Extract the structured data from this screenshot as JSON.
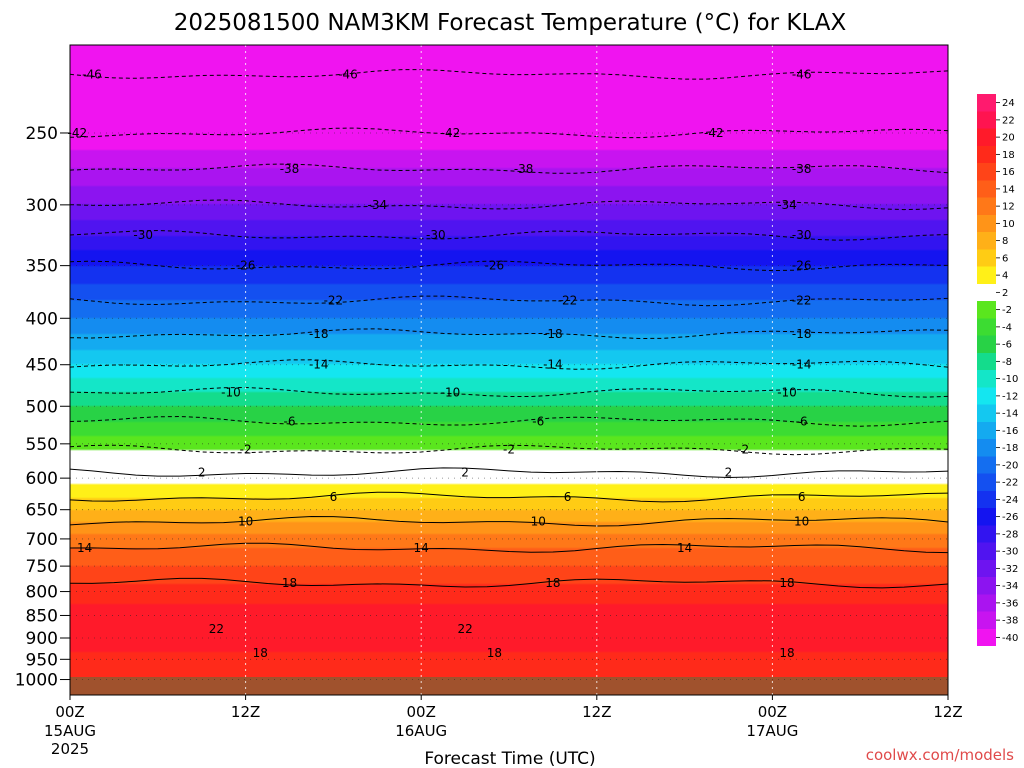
{
  "chart_data": {
    "type": "heatmap",
    "title": "2025081500 NAM3KM Forecast Temperature (°C) for KLAX",
    "xlabel": "Forecast Time (UTC)",
    "ylabel": "",
    "watermark": "coolwx.com/models",
    "x_ticks": [
      {
        "hour": 0,
        "label1": "00Z",
        "label2": "15AUG",
        "label3": "2025"
      },
      {
        "hour": 12,
        "label1": "12Z",
        "label2": "",
        "label3": ""
      },
      {
        "hour": 24,
        "label1": "00Z",
        "label2": "16AUG",
        "label3": ""
      },
      {
        "hour": 36,
        "label1": "12Z",
        "label2": "",
        "label3": ""
      },
      {
        "hour": 48,
        "label1": "00Z",
        "label2": "17AUG",
        "label3": ""
      },
      {
        "hour": 60,
        "label1": "12Z",
        "label2": "",
        "label3": ""
      }
    ],
    "xlim": [
      0,
      60
    ],
    "y_ticks": [
      "250",
      "300",
      "350",
      "400",
      "450",
      "500",
      "550",
      "600",
      "650",
      "700",
      "750",
      "800",
      "850",
      "900",
      "950",
      "1000"
    ],
    "y_tick_values": [
      250,
      300,
      350,
      400,
      450,
      500,
      550,
      600,
      650,
      700,
      750,
      800,
      850,
      900,
      950,
      1000
    ],
    "ylim": [
      200,
      1040
    ],
    "y_scale": "log",
    "y_inverted": true,
    "profile": {
      "pressure_hpa": [
        200,
        250,
        300,
        350,
        400,
        450,
        500,
        550,
        575,
        600,
        650,
        700,
        750,
        800,
        850,
        900,
        950,
        1000
      ],
      "temperature_c": [
        -48,
        -42,
        -34,
        -26,
        -20,
        -14,
        -8,
        -3,
        0,
        3,
        8,
        13,
        16,
        19,
        21,
        22,
        19,
        18
      ]
    },
    "colorbar": {
      "levels": [
        "24",
        "22",
        "20",
        "18",
        "16",
        "14",
        "12",
        "10",
        "8",
        "6",
        "4",
        "2",
        "-2",
        "-4",
        "-6",
        "-8",
        "-10",
        "-12",
        "-14",
        "-16",
        "-18",
        "-20",
        "-22",
        "-24",
        "-26",
        "-28",
        "-30",
        "-32",
        "-34",
        "-36",
        "-38",
        "-40"
      ],
      "colors": [
        "#ff1a6e",
        "#ff1450",
        "#ff1a2a",
        "#ff2a1a",
        "#ff4418",
        "#ff5e18",
        "#ff7818",
        "#ff9418",
        "#ffb018",
        "#ffcc14",
        "#fff018",
        "#ffffff",
        "#5ae61e",
        "#3cdc32",
        "#28d246",
        "#14dc8c",
        "#14e6c8",
        "#14e6f0",
        "#14c8f0",
        "#14aaf0",
        "#148cf0",
        "#146ef0",
        "#1450f0",
        "#1432f0",
        "#1414f0",
        "#3214f0",
        "#5014f0",
        "#6e14f0",
        "#8c14f0",
        "#aa14f0",
        "#c814f0",
        "#f014f0"
      ]
    },
    "contour_labels": [
      {
        "t": 1.5,
        "value": "-46"
      },
      {
        "t": 19,
        "value": "-46"
      },
      {
        "t": 50,
        "value": "-46"
      },
      {
        "t": 0.5,
        "value": "-42"
      },
      {
        "t": 26,
        "value": "-42"
      },
      {
        "t": 44,
        "value": "-42"
      },
      {
        "t": 15,
        "value": "-38"
      },
      {
        "t": 31,
        "value": "-38"
      },
      {
        "t": 50,
        "value": "-38"
      },
      {
        "t": 21,
        "value": "-34"
      },
      {
        "t": 49,
        "value": "-34"
      },
      {
        "t": 5,
        "value": "-30"
      },
      {
        "t": 25,
        "value": "-30"
      },
      {
        "t": 50,
        "value": "-30"
      },
      {
        "t": 12,
        "value": "-26"
      },
      {
        "t": 29,
        "value": "-26"
      },
      {
        "t": 50,
        "value": "-26"
      },
      {
        "t": 18,
        "value": "-22"
      },
      {
        "t": 34,
        "value": "-22"
      },
      {
        "t": 50,
        "value": "-22"
      },
      {
        "t": 17,
        "value": "-18"
      },
      {
        "t": 33,
        "value": "-18"
      },
      {
        "t": 50,
        "value": "-18"
      },
      {
        "t": 17,
        "value": "-14"
      },
      {
        "t": 33,
        "value": "-14"
      },
      {
        "t": 50,
        "value": "-14"
      },
      {
        "t": 11,
        "value": "-10"
      },
      {
        "t": 26,
        "value": "-10"
      },
      {
        "t": 49,
        "value": "-10"
      },
      {
        "t": 15,
        "value": "-6"
      },
      {
        "t": 32,
        "value": "-6"
      },
      {
        "t": 50,
        "value": "-6"
      },
      {
        "t": 12,
        "value": "-2"
      },
      {
        "t": 30,
        "value": "-2"
      },
      {
        "t": 46,
        "value": "-2"
      },
      {
        "t": 9,
        "value": "2"
      },
      {
        "t": 27,
        "value": "2"
      },
      {
        "t": 45,
        "value": "2"
      },
      {
        "t": 18,
        "value": "6"
      },
      {
        "t": 34,
        "value": "6"
      },
      {
        "t": 50,
        "value": "6"
      },
      {
        "t": 12,
        "value": "10"
      },
      {
        "t": 32,
        "value": "10"
      },
      {
        "t": 50,
        "value": "10"
      },
      {
        "t": 1,
        "value": "14"
      },
      {
        "t": 24,
        "value": "14"
      },
      {
        "t": 42,
        "value": "14"
      },
      {
        "t": 15,
        "value": "18"
      },
      {
        "t": 33,
        "value": "18"
      },
      {
        "t": 49,
        "value": "18"
      },
      {
        "t": 10,
        "value": "22"
      },
      {
        "t": 27,
        "value": "22"
      },
      {
        "t": 13,
        "value": "18"
      },
      {
        "t": 29,
        "value": "18"
      },
      {
        "t": 49,
        "value": "18"
      }
    ]
  }
}
